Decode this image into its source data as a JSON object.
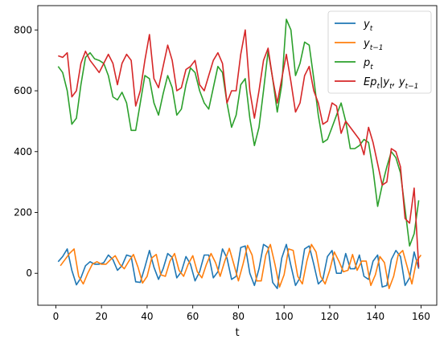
{
  "chart_data": {
    "type": "line",
    "title": "",
    "xlabel": "t",
    "ylabel": "",
    "xlim": [
      -7.9,
      166.9
    ],
    "ylim": [
      -105,
      880
    ],
    "xticks": [
      0,
      20,
      40,
      60,
      80,
      100,
      120,
      140,
      160
    ],
    "yticks": [
      0,
      200,
      400,
      600,
      800
    ],
    "xtick_labels": [
      "0",
      "20",
      "40",
      "60",
      "80",
      "100",
      "120",
      "140",
      "160"
    ],
    "ytick_labels": [
      "0",
      "200",
      "400",
      "600",
      "800"
    ],
    "grid": false,
    "legend": "top-right",
    "series": [
      {
        "name": "y_t",
        "label": {
          "main": "y",
          "sub": "t"
        },
        "color": "#1f77b4",
        "x": [
          1,
          3,
          5,
          7,
          9,
          11,
          13,
          15,
          17,
          19,
          21,
          23,
          25,
          27,
          29,
          31,
          33,
          35,
          37,
          39,
          41,
          43,
          45,
          47,
          49,
          51,
          53,
          55,
          57,
          59,
          61,
          63,
          65,
          67,
          69,
          71,
          73,
          75,
          77,
          79,
          81,
          83,
          85,
          87,
          89,
          91,
          93,
          95,
          97,
          99,
          101,
          103,
          105,
          107,
          109,
          111,
          113,
          115,
          117,
          119,
          121,
          123,
          125,
          127,
          129,
          131,
          133,
          135,
          137,
          139,
          141,
          143,
          145,
          147,
          149,
          151,
          153,
          155,
          157,
          159
        ],
        "values": [
          38,
          55,
          80,
          10,
          -38,
          -15,
          25,
          38,
          30,
          30,
          35,
          60,
          45,
          10,
          25,
          60,
          55,
          -28,
          -30,
          20,
          75,
          20,
          -20,
          15,
          65,
          52,
          -15,
          5,
          55,
          30,
          -25,
          5,
          60,
          60,
          -15,
          5,
          80,
          50,
          -20,
          -10,
          85,
          90,
          0,
          -40,
          15,
          95,
          85,
          -30,
          -50,
          50,
          95,
          25,
          -40,
          -15,
          80,
          90,
          30,
          -35,
          -20,
          55,
          75,
          0,
          0,
          65,
          15,
          15,
          60,
          -10,
          -20,
          40,
          60,
          -45,
          -40,
          45,
          75,
          55,
          -40,
          -15,
          70,
          15
        ]
      },
      {
        "name": "y_{t-1}",
        "label": {
          "main": "y",
          "sub": "t−1"
        },
        "color": "#ff7f0e",
        "x": [
          1,
          3,
          5,
          7,
          9,
          11,
          13,
          15,
          17,
          19,
          21,
          23,
          25,
          27,
          29,
          31,
          33,
          35,
          37,
          39,
          41,
          43,
          45,
          47,
          49,
          51,
          53,
          55,
          57,
          59,
          61,
          63,
          65,
          67,
          69,
          71,
          73,
          75,
          77,
          79,
          81,
          83,
          85,
          87,
          89,
          91,
          93,
          95,
          97,
          99,
          101,
          103,
          105,
          107,
          109,
          111,
          113,
          115,
          117,
          119,
          121,
          123,
          125,
          127,
          129,
          131,
          133,
          135,
          137,
          139,
          141,
          143,
          145,
          147,
          149,
          151,
          153,
          155,
          157,
          159
        ],
        "values": [
          25,
          45,
          65,
          80,
          -10,
          -35,
          0,
          30,
          38,
          30,
          30,
          45,
          58,
          30,
          15,
          40,
          62,
          20,
          -32,
          -10,
          50,
          62,
          -5,
          -10,
          40,
          65,
          10,
          -10,
          30,
          58,
          5,
          -15,
          30,
          65,
          35,
          -10,
          40,
          82,
          30,
          -25,
          30,
          92,
          60,
          -25,
          -25,
          60,
          95,
          30,
          -45,
          -5,
          80,
          75,
          -10,
          -35,
          40,
          95,
          70,
          -10,
          -35,
          10,
          70,
          40,
          5,
          10,
          62,
          10,
          40,
          40,
          -40,
          -5,
          55,
          35,
          -50,
          -10,
          60,
          75,
          20,
          -35,
          40,
          60
        ],
        "step_offset": 1
      },
      {
        "name": "p_t",
        "label": {
          "main": "p",
          "sub": "t"
        },
        "color": "#2ca02c",
        "x": [
          1,
          3,
          5,
          7,
          9,
          11,
          13,
          15,
          17,
          19,
          21,
          23,
          25,
          27,
          29,
          31,
          33,
          35,
          37,
          39,
          41,
          43,
          45,
          47,
          49,
          51,
          53,
          55,
          57,
          59,
          61,
          63,
          65,
          67,
          69,
          71,
          73,
          75,
          77,
          79,
          81,
          83,
          85,
          87,
          89,
          91,
          93,
          95,
          97,
          99,
          101,
          103,
          105,
          107,
          109,
          111,
          113,
          115,
          117,
          119,
          121,
          123,
          125,
          127,
          129,
          131,
          133,
          135,
          137,
          139,
          141,
          143,
          145,
          147,
          149,
          151,
          153,
          155,
          157,
          159
        ],
        "values": [
          680,
          660,
          600,
          490,
          510,
          620,
          710,
          725,
          705,
          700,
          690,
          650,
          580,
          570,
          595,
          560,
          470,
          470,
          560,
          650,
          640,
          560,
          520,
          590,
          650,
          610,
          520,
          540,
          620,
          675,
          660,
          600,
          560,
          540,
          610,
          680,
          660,
          560,
          480,
          520,
          620,
          640,
          510,
          420,
          480,
          600,
          730,
          640,
          530,
          620,
          835,
          800,
          650,
          690,
          760,
          750,
          640,
          520,
          430,
          440,
          480,
          520,
          560,
          500,
          410,
          410,
          420,
          440,
          430,
          340,
          220,
          290,
          350,
          400,
          380,
          330,
          210,
          90,
          130,
          240
        ]
      },
      {
        "name": "Ep_t|y_t, y_{t-1}",
        "label": {
          "main": "Ep",
          "sub": "t",
          "rest": "|y",
          "sub2": "t",
          "rest2": ", y",
          "sub3": "t−1"
        },
        "color": "#d62728",
        "x": [
          1,
          3,
          5,
          7,
          9,
          11,
          13,
          15,
          17,
          19,
          21,
          23,
          25,
          27,
          29,
          31,
          33,
          35,
          37,
          39,
          41,
          43,
          45,
          47,
          49,
          51,
          53,
          55,
          57,
          59,
          61,
          63,
          65,
          67,
          69,
          71,
          73,
          75,
          77,
          79,
          81,
          83,
          85,
          87,
          89,
          91,
          93,
          95,
          97,
          99,
          101,
          103,
          105,
          107,
          109,
          111,
          113,
          115,
          117,
          119,
          121,
          123,
          125,
          127,
          129,
          131,
          133,
          135,
          137,
          139,
          141,
          143,
          145,
          147,
          149,
          151,
          153,
          155,
          157,
          159
        ],
        "values": [
          715,
          710,
          725,
          580,
          600,
          690,
          730,
          700,
          680,
          660,
          690,
          720,
          690,
          620,
          690,
          720,
          700,
          550,
          600,
          700,
          785,
          640,
          610,
          680,
          750,
          700,
          600,
          610,
          670,
          680,
          700,
          620,
          600,
          650,
          700,
          725,
          690,
          560,
          600,
          600,
          720,
          800,
          600,
          510,
          600,
          700,
          740,
          640,
          560,
          640,
          720,
          630,
          530,
          560,
          650,
          680,
          600,
          560,
          490,
          500,
          560,
          550,
          460,
          500,
          480,
          460,
          440,
          390,
          480,
          430,
          360,
          290,
          300,
          410,
          400,
          350,
          180,
          165,
          280,
          20
        ]
      }
    ]
  }
}
